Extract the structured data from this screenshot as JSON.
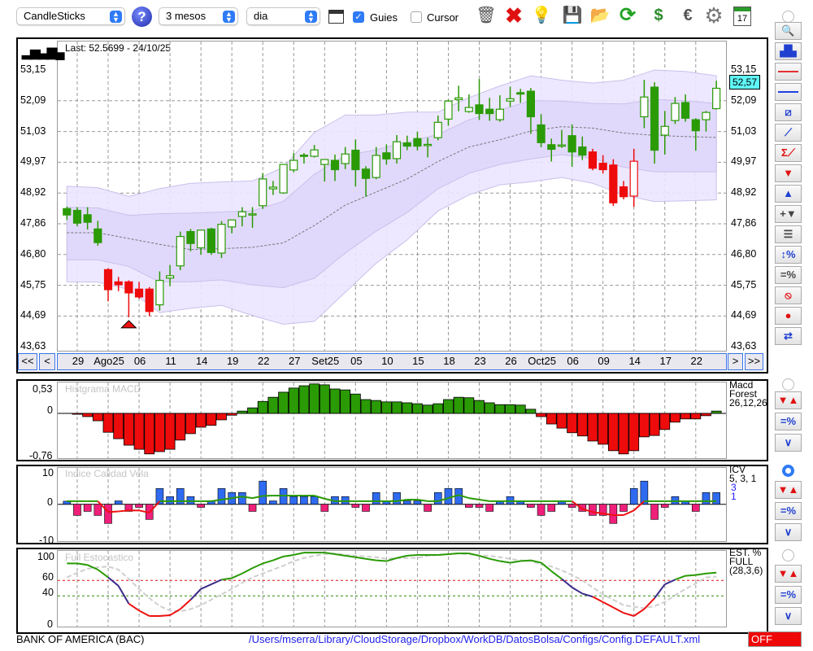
{
  "toolbar": {
    "chart_type": "CandleSticks",
    "period": "3 mesos",
    "interval": "dia",
    "guides_label": "Guies",
    "guides_checked": true,
    "cursor_label": "Cursor",
    "cursor_checked": false,
    "icons": [
      "help-icon",
      "chart-window-icon",
      "trash-icon",
      "delete-icon",
      "lightbulb-icon",
      "save-icon",
      "folder-icon",
      "refresh-icon",
      "dollar-refresh-icon",
      "euro-icon",
      "gear-icon",
      "calendar-icon"
    ],
    "calendar_day": "17"
  },
  "main": {
    "last_label": "Last: 52.5699 - 24/10/25",
    "current_price": "52,57",
    "price_labels": [
      "53,15",
      "52,09",
      "51,03",
      "49,97",
      "48,92",
      "47,86",
      "46,80",
      "45,75",
      "44,69",
      "43,63"
    ],
    "nav": {
      "first": "<<",
      "prev": "<",
      "next": ">",
      "last": ">>"
    },
    "date_labels": [
      "29",
      "Ago25",
      "06",
      "11",
      "14",
      "19",
      "22",
      "27",
      "Set25",
      "05",
      "10",
      "15",
      "18",
      "23",
      "26",
      "Oct25",
      "06",
      "09",
      "14",
      "17",
      "22"
    ]
  },
  "panels": {
    "macd": {
      "title": "Histgrama MACD",
      "labels": [
        "0,53",
        "0",
        "-0,76"
      ],
      "legend": [
        "Macd",
        "Forest",
        "26,12,26"
      ]
    },
    "icv": {
      "title": "Indice Calidad Vela",
      "labels": [
        "10",
        "0",
        "-10"
      ],
      "legend": [
        "ICV",
        "5, 3, 1"
      ],
      "legend_blue": [
        "3",
        "1"
      ]
    },
    "stoch": {
      "title": "Full Estocastico",
      "labels": [
        "100",
        "60",
        "40",
        "0"
      ],
      "legend": [
        "EST. %",
        "FULL",
        "(28,3,6)"
      ]
    }
  },
  "status": {
    "symbol": "BANK OF AMERICA (BAC)",
    "config_path": "/Users/mserra/Library/CloudStorage/Dropbox/WorkDB/DatosBolsa/Configs/Config.DEFAULT.xml",
    "off_label": "OFF"
  },
  "sidebar": {
    "tools": [
      {
        "name": "zoom",
        "glyph": "🔍"
      },
      {
        "name": "overview-chart",
        "glyph": "▟▙"
      },
      {
        "name": "red-line",
        "glyph": ""
      },
      {
        "name": "blue-line",
        "glyph": ""
      },
      {
        "name": "channel",
        "glyph": "⧄"
      },
      {
        "name": "trendline",
        "glyph": "⟋"
      },
      {
        "name": "sum-trendline",
        "glyph": "Σ⟋"
      },
      {
        "name": "down-arrow",
        "glyph": "▼"
      },
      {
        "name": "up-arrow",
        "glyph": "▲"
      },
      {
        "name": "add-signal",
        "glyph": "+▼"
      },
      {
        "name": "dashed-lines",
        "glyph": "☰"
      },
      {
        "name": "range-percent",
        "glyph": "↕%"
      },
      {
        "name": "lines-percent",
        "glyph": "=%"
      },
      {
        "name": "no-entry",
        "glyph": "⦸"
      },
      {
        "name": "record",
        "glyph": "●"
      },
      {
        "name": "sync",
        "glyph": "⇄"
      }
    ],
    "panel_tools": [
      "signals",
      "lines-percent",
      "curves"
    ]
  },
  "colors": {
    "up": "#2a9a05",
    "down_red": "#ee0b0b",
    "band_outer": "#ebe6ff",
    "band_inner": "#ddd5fb",
    "macd_pos": "#2a9a05",
    "macd_neg": "#ee0b0b",
    "icv_pos": "#2f6bf0",
    "icv_neg": "#ef1f7a",
    "accent": "#2f7bf6",
    "cyan": "#5ff6f6"
  },
  "chart_data": [
    {
      "type": "candlestick",
      "title": "BANK OF AMERICA (BAC)",
      "ylim": [
        43.63,
        53.15
      ],
      "fields": [
        "open",
        "high",
        "low",
        "close",
        "style"
      ],
      "candles": [
        [
          48.38,
          48.45,
          47.99,
          48.16,
          "d"
        ],
        [
          48.32,
          48.43,
          47.77,
          47.88,
          "d"
        ],
        [
          48.17,
          48.43,
          47.66,
          47.91,
          "d"
        ],
        [
          47.68,
          47.96,
          47.1,
          47.21,
          "d"
        ],
        [
          46.28,
          46.33,
          45.19,
          45.59,
          "r"
        ],
        [
          45.86,
          46.03,
          45.54,
          45.76,
          "r"
        ],
        [
          45.86,
          45.91,
          44.64,
          45.48,
          "r"
        ],
        [
          45.61,
          45.86,
          45.28,
          45.34,
          "r"
        ],
        [
          45.61,
          45.68,
          44.68,
          44.84,
          "r"
        ],
        [
          45.07,
          46.22,
          44.87,
          45.91,
          "u"
        ],
        [
          45.99,
          46.44,
          45.71,
          46.07,
          "u"
        ],
        [
          46.41,
          47.59,
          46.26,
          47.42,
          "u"
        ],
        [
          47.59,
          47.68,
          46.91,
          47.18,
          "d"
        ],
        [
          47.03,
          47.64,
          46.79,
          47.64,
          "u"
        ],
        [
          47.68,
          47.72,
          46.79,
          46.87,
          "d"
        ],
        [
          46.85,
          47.95,
          46.68,
          47.84,
          "u"
        ],
        [
          47.75,
          47.99,
          47.53,
          47.99,
          "u"
        ],
        [
          48.11,
          48.43,
          47.77,
          48.27,
          "u"
        ],
        [
          48.19,
          48.43,
          47.72,
          48.2,
          "u"
        ],
        [
          48.48,
          49.6,
          48.37,
          49.4,
          "u"
        ],
        [
          49.06,
          49.33,
          48.85,
          49.12,
          "u"
        ],
        [
          48.92,
          49.9,
          48.89,
          49.9,
          "u"
        ],
        [
          49.71,
          50.29,
          49.63,
          50.04,
          "u"
        ],
        [
          50.22,
          50.29,
          49.93,
          50.18,
          "d"
        ],
        [
          50.18,
          50.57,
          50.14,
          50.4,
          "u"
        ],
        [
          49.9,
          50.07,
          49.31,
          50.07,
          "u"
        ],
        [
          50.04,
          50.24,
          49.33,
          49.72,
          "d"
        ],
        [
          49.93,
          50.5,
          49.74,
          50.26,
          "u"
        ],
        [
          50.39,
          50.76,
          49.14,
          49.72,
          "d"
        ],
        [
          49.74,
          49.84,
          48.79,
          49.42,
          "d"
        ],
        [
          49.45,
          50.5,
          49.39,
          50.21,
          "u"
        ],
        [
          50.3,
          50.59,
          49.89,
          50.09,
          "d"
        ],
        [
          50.1,
          50.91,
          49.93,
          50.68,
          "u"
        ],
        [
          50.64,
          50.89,
          50.39,
          50.53,
          "d"
        ],
        [
          50.79,
          51.03,
          50.38,
          50.53,
          "d"
        ],
        [
          50.58,
          50.82,
          50.14,
          50.59,
          "u"
        ],
        [
          50.82,
          51.58,
          50.73,
          51.35,
          "u"
        ],
        [
          51.46,
          52.13,
          51.23,
          52.08,
          "u"
        ],
        [
          52.13,
          52.61,
          51.73,
          52.19,
          "u"
        ],
        [
          51.72,
          52.31,
          51.68,
          51.86,
          "u"
        ],
        [
          51.95,
          52.84,
          51.43,
          51.65,
          "d"
        ],
        [
          51.8,
          52.19,
          51.4,
          51.65,
          "d"
        ],
        [
          51.44,
          52.28,
          51.37,
          51.8,
          "u"
        ],
        [
          52.08,
          52.58,
          51.88,
          52.16,
          "u"
        ],
        [
          52.37,
          52.5,
          52.02,
          52.32,
          "d"
        ],
        [
          52.42,
          52.53,
          50.95,
          51.54,
          "d"
        ],
        [
          51.26,
          51.63,
          50.49,
          50.65,
          "d"
        ],
        [
          50.58,
          50.79,
          50.0,
          50.42,
          "d"
        ],
        [
          50.57,
          51.09,
          50.47,
          50.57,
          "u"
        ],
        [
          50.89,
          51.28,
          49.82,
          50.33,
          "d"
        ],
        [
          50.5,
          50.86,
          50.05,
          50.22,
          "d"
        ],
        [
          50.33,
          50.44,
          49.7,
          49.77,
          "r"
        ],
        [
          49.94,
          50.22,
          49.59,
          49.72,
          "r"
        ],
        [
          49.88,
          50.08,
          48.47,
          48.58,
          "r"
        ],
        [
          49.13,
          49.33,
          48.7,
          48.79,
          "r"
        ],
        [
          48.81,
          50.44,
          48.44,
          50.01,
          "ru"
        ],
        [
          51.54,
          52.81,
          51.15,
          52.22,
          "u"
        ],
        [
          52.56,
          52.73,
          49.93,
          50.39,
          "d"
        ],
        [
          50.91,
          51.74,
          50.24,
          51.21,
          "u"
        ],
        [
          51.41,
          52.22,
          51.29,
          52.0,
          "u"
        ],
        [
          52.03,
          52.31,
          51.37,
          51.49,
          "d"
        ],
        [
          51.44,
          51.49,
          50.37,
          51.06,
          "d"
        ],
        [
          51.44,
          51.74,
          51.03,
          51.69,
          "u"
        ],
        [
          51.82,
          52.78,
          51.79,
          52.52,
          "u"
        ]
      ],
      "signal_marker_index": 6,
      "bands_sample_step": 3,
      "band_upper": [
        49.15,
        49.1,
        48.8,
        49.07,
        49.25,
        49.3,
        49.33,
        49.8,
        51.0,
        51.6,
        51.6,
        51.7,
        51.7,
        52.2,
        52.6,
        52.95,
        52.8,
        52.7,
        52.8,
        53.15,
        53.1,
        52.95
      ],
      "band_mid": [
        47.55,
        47.55,
        47.35,
        47.15,
        46.97,
        47.0,
        47.05,
        47.2,
        47.8,
        48.5,
        48.95,
        49.4,
        50.0,
        50.5,
        50.75,
        51.05,
        51.2,
        51.15,
        50.98,
        50.9,
        50.86,
        50.83
      ],
      "band_lower": [
        45.86,
        45.85,
        45.6,
        44.8,
        44.95,
        45.05,
        44.7,
        44.4,
        44.5,
        45.5,
        46.5,
        47.3,
        48.3,
        48.85,
        49.2,
        49.3,
        49.45,
        49.25,
        48.85,
        48.62,
        48.65,
        48.68
      ]
    },
    {
      "type": "bar",
      "title": "Histgrama MACD",
      "ylim": [
        -0.9,
        0.68
      ],
      "values": [
        0,
        -0.02,
        -0.07,
        -0.16,
        -0.41,
        -0.55,
        -0.69,
        -0.78,
        -0.88,
        -0.83,
        -0.78,
        -0.58,
        -0.44,
        -0.3,
        -0.26,
        -0.14,
        -0.04,
        0.05,
        0.12,
        0.26,
        0.35,
        0.46,
        0.55,
        0.6,
        0.64,
        0.62,
        0.53,
        0.51,
        0.42,
        0.3,
        0.28,
        0.25,
        0.25,
        0.23,
        0.21,
        0.18,
        0.21,
        0.3,
        0.35,
        0.34,
        0.28,
        0.23,
        0.19,
        0.19,
        0.18,
        0.09,
        -0.07,
        -0.23,
        -0.32,
        -0.42,
        -0.49,
        -0.6,
        -0.67,
        -0.81,
        -0.88,
        -0.81,
        -0.51,
        -0.48,
        -0.35,
        -0.19,
        -0.12,
        -0.12,
        -0.05,
        0.05
      ]
    },
    {
      "type": "bar",
      "title": "Indice Calidad Vela",
      "ylim": [
        -10,
        10
      ],
      "values": [
        1,
        -3.6,
        -2.3,
        -3.6,
        -6.2,
        1.1,
        -2.3,
        -1,
        -4.9,
        5.1,
        2.5,
        5.1,
        2.5,
        -1,
        1.1,
        5.1,
        3.8,
        3.8,
        -2.3,
        7.5,
        1.1,
        5.1,
        2.5,
        2.5,
        2.5,
        -2.3,
        2.5,
        2.5,
        -1,
        -2.3,
        3.8,
        1.1,
        3.8,
        1.1,
        1.1,
        -2.3,
        3.8,
        5.1,
        5.1,
        -1,
        -1,
        -2.3,
        1.1,
        2.5,
        1.1,
        -1,
        -3.6,
        -2.3,
        1.1,
        -1,
        -2.3,
        -3.6,
        -3.6,
        -6.2,
        -2.3,
        5.1,
        7.5,
        -4.9,
        -1,
        2.5,
        1.1,
        -2.3,
        3.8,
        3.8
      ],
      "signal": [
        1,
        1,
        1,
        1,
        -2.5,
        -2.3,
        -2,
        -2,
        -2.7,
        1,
        1,
        1,
        1,
        1,
        1,
        1.5,
        2,
        2.5,
        2,
        2.7,
        2.8,
        2.8,
        2.8,
        2.8,
        2.8,
        1.8,
        1,
        1,
        1,
        1,
        1,
        1,
        1,
        1.5,
        1.5,
        1,
        1,
        2,
        3,
        2,
        1.5,
        1,
        1,
        1,
        1,
        1,
        1,
        1,
        1,
        1,
        -1.5,
        -2.5,
        -3,
        -3.5,
        -3.5,
        -2,
        1,
        1,
        1,
        1,
        1,
        1,
        1,
        1
      ]
    },
    {
      "type": "line",
      "title": "Full Estocastico",
      "ylim": [
        0,
        100
      ],
      "levels": [
        60,
        40
      ],
      "series": [
        {
          "name": "%K",
          "values": [
            82,
            82,
            80,
            74,
            64,
            53,
            30,
            21,
            14,
            14,
            15,
            23,
            35,
            49,
            55,
            61,
            63,
            69,
            76,
            82,
            86,
            91,
            93,
            96,
            96,
            96,
            94,
            92,
            90,
            88,
            86,
            85,
            89,
            92,
            93,
            93,
            93,
            94,
            95,
            95,
            92,
            88,
            85,
            83,
            85,
            86,
            83,
            72,
            62,
            51,
            43,
            39,
            32,
            25,
            18,
            14,
            23,
            37,
            55,
            61,
            66,
            67,
            69,
            70
          ]
        },
        {
          "name": "%D",
          "values": [
            64,
            70,
            75,
            77,
            78,
            74,
            62,
            49,
            37,
            27,
            21,
            20,
            23,
            28,
            35,
            42,
            49,
            57,
            64,
            69,
            74,
            79,
            85,
            89,
            92,
            94,
            95,
            93,
            92,
            91,
            90,
            88,
            89,
            89,
            89,
            92,
            93,
            94,
            95,
            94,
            92,
            92,
            90,
            88,
            86,
            85,
            81,
            78,
            73,
            67,
            60,
            51,
            42,
            35,
            28,
            26,
            24,
            27,
            32,
            41,
            49,
            56,
            64,
            65
          ]
        }
      ]
    }
  ]
}
